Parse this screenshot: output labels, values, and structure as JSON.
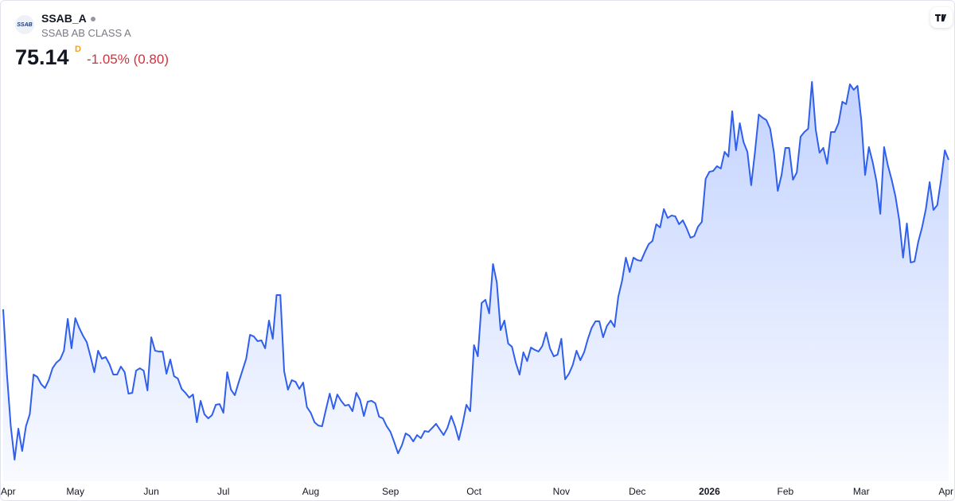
{
  "header": {
    "logo_text": "SSAB",
    "symbol": "SSAB_A",
    "description": "SSAB AB CLASS A",
    "price": "75.14",
    "interval": "D",
    "change": "-1.05% (0.80)"
  },
  "chart_data": {
    "type": "area",
    "color": "#2f5fec",
    "values": [
      62.61,
      57.14,
      52.81,
      50.01,
      52.61,
      50.74,
      52.81,
      53.81,
      57.14,
      56.94,
      56.34,
      56.01,
      56.67,
      57.67,
      58.14,
      58.41,
      59.14,
      61.81,
      59.34,
      61.87,
      61.07,
      60.41,
      59.87,
      58.67,
      57.34,
      59.14,
      58.47,
      58.61,
      58.01,
      57.14,
      57.14,
      57.81,
      57.34,
      55.54,
      55.61,
      57.47,
      57.67,
      57.47,
      55.81,
      60.27,
      59.14,
      59.07,
      59.07,
      57.21,
      58.41,
      57.01,
      56.81,
      55.94,
      55.61,
      55.21,
      55.47,
      53.14,
      54.94,
      53.81,
      53.47,
      53.74,
      54.61,
      54.67,
      53.94,
      57.34,
      55.87,
      55.41,
      56.47,
      57.47,
      58.47,
      60.47,
      60.34,
      59.94,
      60.01,
      59.34,
      61.67,
      60.14,
      63.81,
      63.81,
      57.41,
      55.87,
      56.67,
      56.54,
      55.94,
      56.47,
      54.41,
      53.94,
      53.14,
      52.87,
      52.81,
      54.21,
      55.54,
      54.27,
      55.47,
      54.94,
      54.54,
      54.61,
      54.07,
      55.61,
      55.01,
      53.67,
      54.87,
      54.94,
      54.74,
      53.61,
      53.47,
      52.81,
      52.34,
      51.47,
      50.54,
      51.21,
      52.21,
      52.01,
      51.54,
      52.07,
      51.81,
      52.41,
      52.34,
      52.67,
      53.01,
      52.54,
      52.07,
      52.67,
      53.67,
      52.81,
      51.67,
      53.01,
      54.61,
      54.07,
      59.61,
      58.67,
      63.14,
      63.41,
      62.27,
      66.41,
      64.87,
      60.87,
      61.67,
      59.74,
      59.47,
      58.14,
      57.14,
      59.01,
      58.27,
      59.41,
      59.21,
      59.07,
      59.54,
      60.67,
      59.34,
      58.67,
      58.81,
      60.14,
      56.74,
      57.21,
      57.94,
      59.14,
      58.34,
      59.01,
      60.14,
      61.07,
      61.61,
      61.61,
      60.27,
      61.21,
      61.67,
      61.14,
      63.67,
      65.01,
      66.94,
      65.74,
      66.94,
      66.74,
      66.67,
      67.41,
      68.07,
      68.34,
      69.74,
      69.47,
      71.01,
      70.27,
      70.47,
      70.41,
      69.74,
      70.07,
      69.41,
      68.61,
      68.74,
      69.54,
      69.94,
      73.54,
      74.14,
      74.21,
      74.61,
      74.41,
      75.81,
      75.41,
      79.21,
      75.94,
      78.21,
      76.61,
      75.81,
      73.01,
      75.81,
      78.94,
      78.67,
      78.47,
      77.74,
      75.74,
      72.54,
      73.87,
      76.14,
      76.14,
      73.47,
      74.07,
      77.07,
      77.47,
      77.74,
      81.67,
      77.67,
      75.74,
      76.14,
      74.81,
      77.47,
      77.47,
      78.21,
      80.01,
      79.81,
      81.47,
      81.01,
      81.34,
      78.47,
      73.87,
      76.21,
      74.94,
      73.34,
      70.61,
      76.21,
      74.67,
      73.47,
      72.07,
      70.07,
      66.94,
      69.81,
      66.54,
      66.61,
      68.27,
      69.47,
      71.01,
      73.27,
      70.94,
      71.34,
      73.47,
      75.94,
      75.14
    ],
    "xticks": [
      {
        "value": 0,
        "label": "Apr"
      },
      {
        "value": 19,
        "label": "May"
      },
      {
        "value": 39,
        "label": "Jun"
      },
      {
        "value": 58,
        "label": "Jul"
      },
      {
        "value": 81,
        "label": "Aug"
      },
      {
        "value": 102,
        "label": "Sep"
      },
      {
        "value": 124,
        "label": "Oct"
      },
      {
        "value": 147,
        "label": "Nov"
      },
      {
        "value": 167,
        "label": "Dec"
      },
      {
        "value": 186,
        "label": "2026"
      },
      {
        "value": 206,
        "label": "Feb"
      },
      {
        "value": 226,
        "label": "Mar"
      },
      {
        "value": 248,
        "label": "Apr"
      }
    ]
  }
}
